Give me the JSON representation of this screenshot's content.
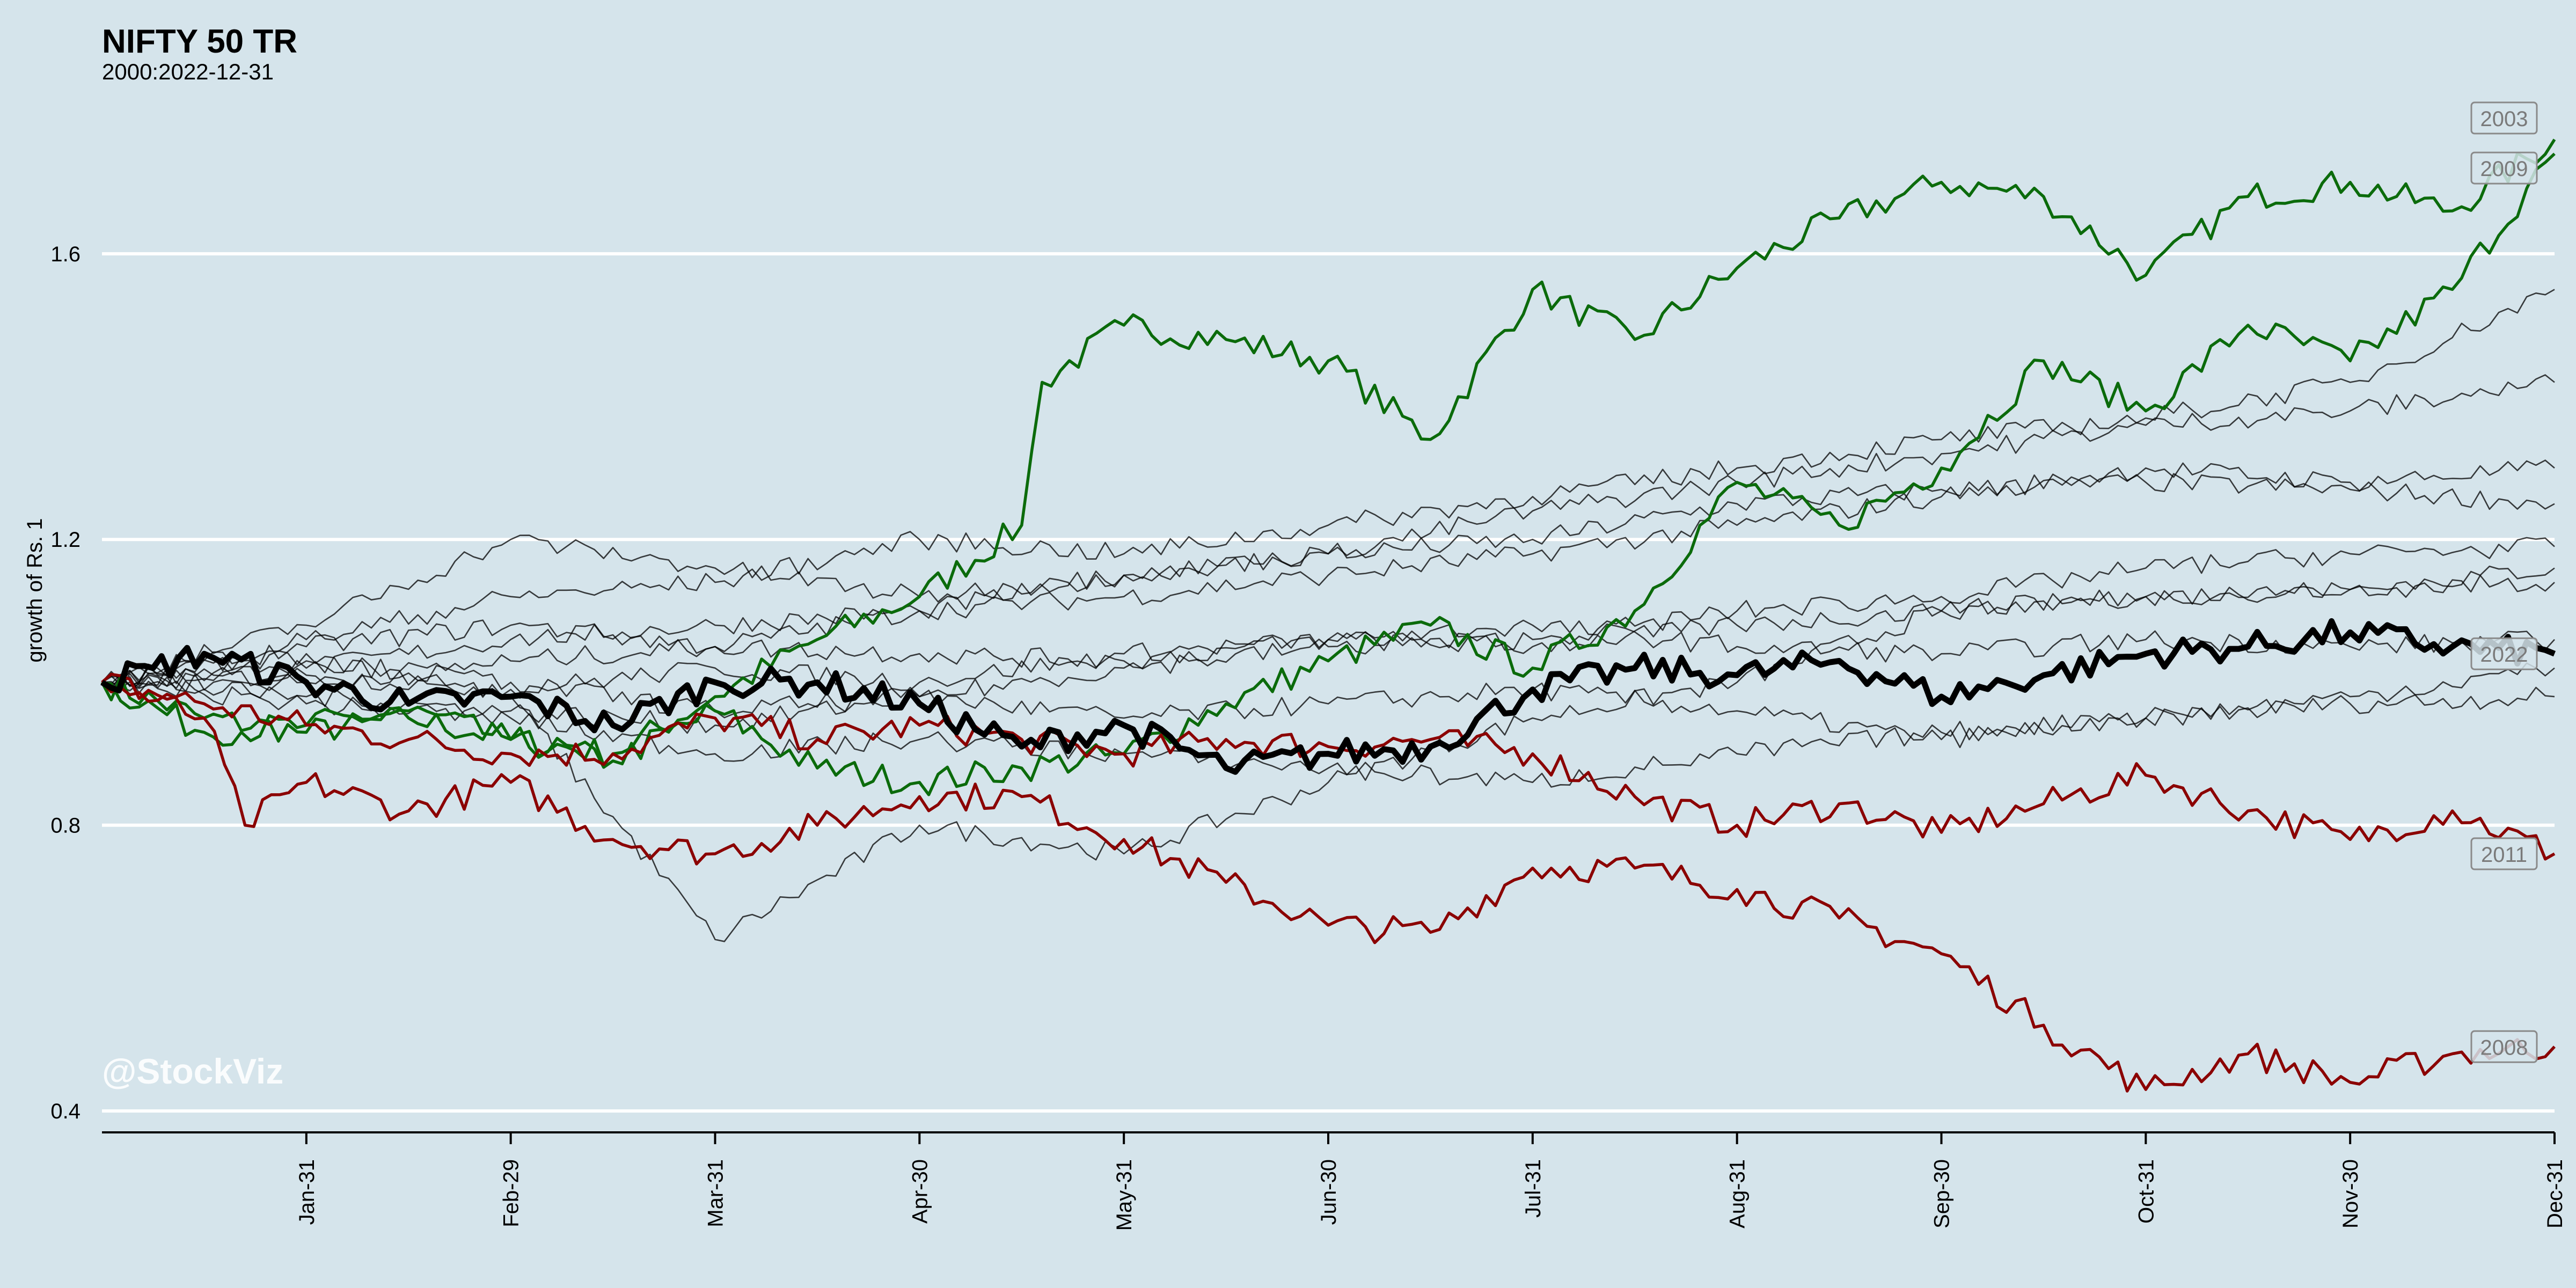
{
  "title": "NIFTY 50 TR",
  "subtitle": "2000:2022-12-31",
  "watermark": "@StockViz",
  "colors": {
    "background": "#d5e4eb",
    "grid": "#ffffff",
    "up": "#0b6b0b",
    "down": "#8b0000",
    "current": "#000000",
    "other": "#000000"
  },
  "chart_data": {
    "type": "line",
    "title": "NIFTY 50 TR",
    "subtitle": "2000:2022-12-31",
    "xlabel": "",
    "ylabel": "growth of Rs. 1",
    "ylim": [
      0.37,
      1.82
    ],
    "y_ticks": [
      0.4,
      0.8,
      1.2,
      1.6
    ],
    "grid": "horizontal",
    "x_range": [
      0,
      12
    ],
    "x_ticks": [
      {
        "month": 1,
        "label": "Jan-31"
      },
      {
        "month": 2,
        "label": "Feb-29"
      },
      {
        "month": 3,
        "label": "Mar-31"
      },
      {
        "month": 4,
        "label": "Apr-30"
      },
      {
        "month": 5,
        "label": "May-31"
      },
      {
        "month": 6,
        "label": "Jun-30"
      },
      {
        "month": 7,
        "label": "Jul-31"
      },
      {
        "month": 8,
        "label": "Aug-31"
      },
      {
        "month": 9,
        "label": "Sep-30"
      },
      {
        "month": 10,
        "label": "Oct-31"
      },
      {
        "month": 11,
        "label": "Nov-30"
      },
      {
        "month": 12,
        "label": "Dec-31"
      }
    ],
    "series": [
      {
        "name": "2003",
        "group": "up",
        "labeled": true,
        "x": [
          0,
          0.5,
          1,
          1.5,
          2,
          2.5,
          3,
          3.5,
          4,
          4.5,
          4.6,
          5,
          5.5,
          6,
          6.5,
          7,
          7.5,
          8,
          8.5,
          9,
          9.5,
          10,
          10.5,
          11,
          11.5,
          12
        ],
        "y": [
          1.0,
          0.95,
          0.93,
          0.95,
          0.92,
          0.9,
          0.98,
          1.06,
          1.12,
          1.22,
          1.42,
          1.5,
          1.48,
          1.45,
          1.34,
          1.55,
          1.48,
          1.58,
          1.65,
          1.7,
          1.68,
          1.57,
          1.68,
          1.7,
          1.66,
          1.76
        ]
      },
      {
        "name": "2009",
        "group": "up",
        "labeled": true,
        "x": [
          0,
          0.5,
          1,
          1.5,
          2,
          2.5,
          3,
          3.5,
          4,
          4.5,
          5,
          5.5,
          6,
          6.5,
          7,
          7.5,
          8,
          8.5,
          9,
          9.5,
          10,
          10.5,
          11,
          11.5,
          12
        ],
        "y": [
          1.0,
          0.93,
          0.94,
          0.96,
          0.92,
          0.89,
          0.96,
          0.88,
          0.86,
          0.88,
          0.9,
          0.97,
          1.03,
          1.08,
          1.02,
          1.1,
          1.28,
          1.22,
          1.3,
          1.45,
          1.38,
          1.5,
          1.45,
          1.55,
          1.74
        ]
      },
      {
        "name": "2011",
        "group": "down",
        "labeled": true,
        "x": [
          0,
          0.5,
          1,
          1.5,
          2,
          2.5,
          3,
          3.5,
          4,
          4.5,
          5,
          5.5,
          6,
          6.5,
          7,
          7.5,
          8,
          8.5,
          9,
          9.5,
          10,
          10.5,
          11,
          11.5,
          12
        ],
        "y": [
          1.0,
          0.97,
          0.94,
          0.92,
          0.9,
          0.9,
          0.95,
          0.92,
          0.94,
          0.92,
          0.9,
          0.92,
          0.91,
          0.92,
          0.9,
          0.84,
          0.8,
          0.83,
          0.79,
          0.83,
          0.87,
          0.82,
          0.78,
          0.82,
          0.76
        ]
      },
      {
        "name": "2008",
        "group": "down",
        "labeled": true,
        "x": [
          0,
          0.5,
          0.7,
          1,
          1.5,
          2,
          2.5,
          3,
          3.5,
          4,
          4.5,
          5,
          5.5,
          6,
          6.5,
          7,
          7.5,
          8,
          8.5,
          9,
          9.5,
          10,
          10.5,
          11,
          11.5,
          12
        ],
        "y": [
          1.0,
          0.95,
          0.8,
          0.86,
          0.82,
          0.86,
          0.78,
          0.76,
          0.8,
          0.84,
          0.84,
          0.78,
          0.72,
          0.66,
          0.65,
          0.74,
          0.74,
          0.71,
          0.67,
          0.62,
          0.52,
          0.43,
          0.48,
          0.44,
          0.48,
          0.49
        ]
      },
      {
        "name": "2022",
        "group": "current",
        "labeled": true,
        "x": [
          0,
          0.25,
          0.5,
          1,
          1.5,
          2,
          2.5,
          3,
          3.5,
          4,
          4.5,
          5,
          5.5,
          6,
          6.5,
          7,
          7.5,
          8,
          8.5,
          9,
          9.5,
          10,
          10.5,
          11,
          11.5,
          12
        ],
        "y": [
          1.0,
          1.02,
          1.04,
          1.0,
          0.97,
          0.98,
          0.94,
          1.0,
          1.0,
          0.97,
          0.91,
          0.94,
          0.88,
          0.9,
          0.91,
          0.99,
          1.02,
          1.01,
          1.03,
          0.98,
          1.01,
          1.04,
          1.05,
          1.07,
          1.05,
          1.04
        ]
      },
      {
        "group": "other",
        "x": [
          0,
          1,
          2,
          3,
          4,
          5,
          6,
          7,
          8,
          9,
          10,
          11,
          12
        ],
        "y": [
          1.0,
          1.04,
          0.98,
          0.64,
          0.8,
          0.76,
          0.86,
          0.95,
          1.0,
          1.1,
          1.12,
          1.13,
          1.16
        ]
      },
      {
        "group": "other",
        "x": [
          0,
          1,
          2,
          3,
          4,
          5,
          6,
          7,
          8,
          9,
          10,
          11,
          12
        ],
        "y": [
          1.0,
          1.02,
          1.06,
          1.08,
          1.1,
          1.15,
          1.18,
          1.2,
          1.25,
          1.27,
          1.28,
          1.27,
          1.25
        ]
      },
      {
        "group": "other",
        "x": [
          0,
          1,
          2,
          3,
          4,
          5,
          6,
          7,
          8,
          9,
          10,
          11,
          12
        ],
        "y": [
          1.0,
          1.05,
          1.08,
          1.05,
          1.1,
          1.12,
          1.15,
          1.18,
          1.22,
          1.26,
          1.3,
          1.28,
          1.3
        ]
      },
      {
        "group": "other",
        "x": [
          0,
          1,
          2,
          3,
          4,
          5,
          6,
          7,
          8,
          9,
          10,
          11,
          12
        ],
        "y": [
          1.0,
          1.01,
          0.99,
          1.02,
          1.0,
          1.04,
          1.06,
          1.05,
          1.08,
          1.1,
          1.12,
          1.13,
          1.14
        ]
      },
      {
        "group": "other",
        "x": [
          0,
          1,
          2,
          3,
          4,
          5,
          6,
          7,
          8,
          9,
          10,
          11,
          12
        ],
        "y": [
          1.0,
          0.98,
          0.96,
          0.94,
          0.98,
          0.95,
          0.97,
          0.99,
          0.96,
          0.92,
          0.95,
          0.97,
          0.98
        ]
      },
      {
        "group": "other",
        "x": [
          0,
          1,
          2,
          3,
          4,
          5,
          6,
          7,
          8,
          9,
          10,
          11,
          12
        ],
        "y": [
          1.0,
          1.0,
          1.03,
          1.05,
          1.04,
          1.03,
          1.06,
          1.08,
          1.05,
          1.04,
          1.06,
          1.05,
          1.06
        ]
      },
      {
        "group": "other",
        "x": [
          0,
          1,
          2,
          3,
          4,
          5,
          6,
          7,
          8,
          9,
          10,
          11,
          12
        ],
        "y": [
          1.0,
          1.06,
          1.12,
          1.14,
          1.2,
          1.18,
          1.22,
          1.26,
          1.3,
          1.34,
          1.37,
          1.42,
          1.55
        ]
      },
      {
        "group": "other",
        "x": [
          0,
          1,
          2,
          3,
          4,
          5,
          6,
          7,
          8,
          9,
          10,
          11,
          12
        ],
        "y": [
          1.0,
          1.08,
          1.2,
          1.16,
          1.12,
          1.15,
          1.18,
          1.24,
          1.28,
          1.32,
          1.36,
          1.38,
          1.42
        ]
      },
      {
        "group": "other",
        "x": [
          0,
          1,
          2,
          3,
          4,
          5,
          6,
          7,
          8,
          9,
          10,
          11,
          12
        ],
        "y": [
          1.0,
          1.03,
          1.0,
          0.96,
          0.98,
          1.02,
          1.05,
          1.06,
          1.1,
          1.12,
          1.16,
          1.18,
          1.19
        ]
      },
      {
        "group": "other",
        "x": [
          0,
          1,
          2,
          3,
          4,
          5,
          6,
          7,
          8,
          9,
          10,
          11,
          12
        ],
        "y": [
          1.0,
          0.97,
          0.95,
          0.9,
          0.92,
          0.9,
          0.88,
          0.86,
          0.9,
          0.93,
          0.95,
          0.98,
          1.02
        ]
      }
    ],
    "labels": [
      "2003",
      "2009",
      "2022",
      "2011",
      "2008"
    ]
  }
}
